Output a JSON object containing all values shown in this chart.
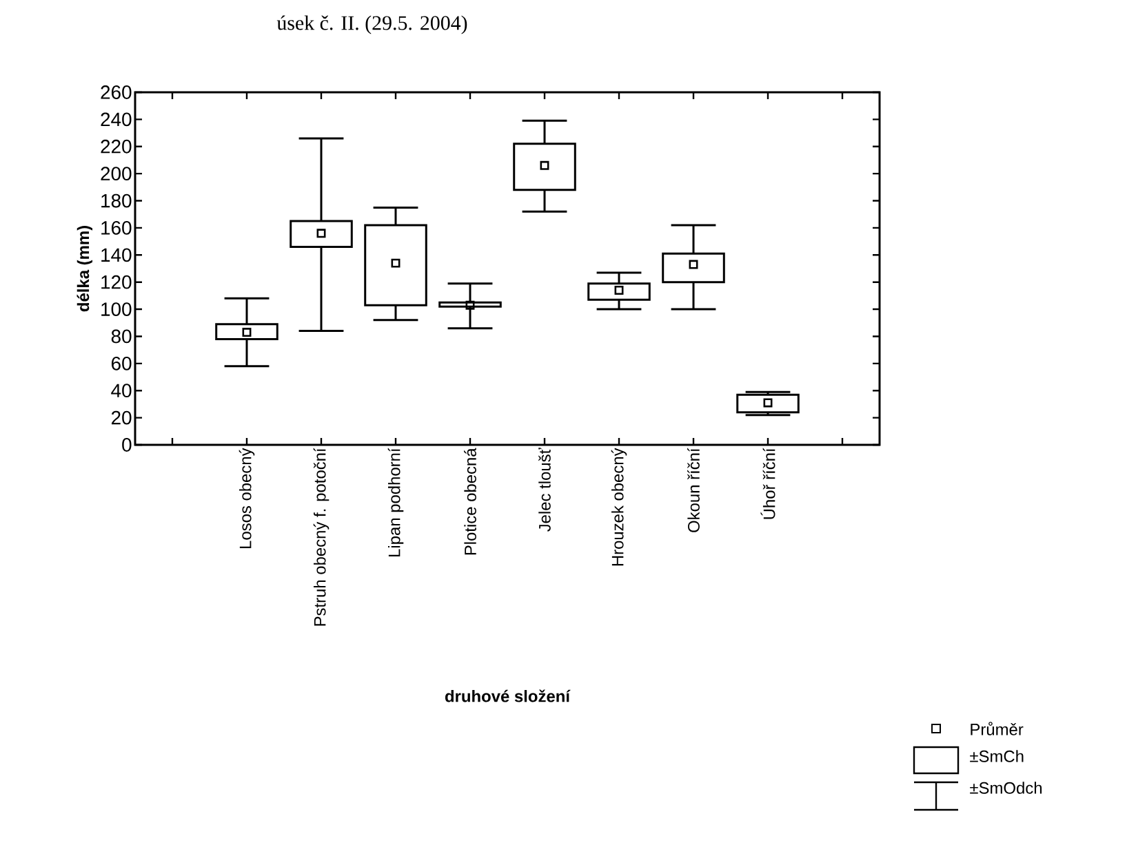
{
  "chart_data": {
    "type": "box",
    "title": "úsek č. II. (29.5. 2004)",
    "xlabel": "druhové složení",
    "ylabel": "délka (mm)",
    "categories": [
      null,
      "Losos obecný",
      "Pstruh obecný f. potoční",
      "Lipan podhorní",
      "Plotice obecná",
      "Jelec tloušť",
      "Hrouzek obecný",
      "Okoun říční",
      "Úhoř říční",
      null
    ],
    "boxes": [
      null,
      {
        "low": 58,
        "q1": 78,
        "q3": 89,
        "high": 108,
        "mean": 83
      },
      {
        "low": 84,
        "q1": 146,
        "q3": 165,
        "high": 226,
        "mean": 156
      },
      {
        "low": 92,
        "q1": 103,
        "q3": 162,
        "high": 175,
        "mean": 134
      },
      {
        "low": 86,
        "q1": 102,
        "q3": 105,
        "high": 119,
        "mean": 103
      },
      {
        "low": 172,
        "q1": 188,
        "q3": 222,
        "high": 239,
        "mean": 206
      },
      {
        "low": 100,
        "q1": 107,
        "q3": 119,
        "high": 127,
        "mean": 114
      },
      {
        "low": 100,
        "q1": 120,
        "q3": 141,
        "high": 162,
        "mean": 133
      },
      {
        "low": 22,
        "q1": 24,
        "q3": 37,
        "high": 39,
        "mean": 31
      },
      null
    ],
    "color": "#000000",
    "marker": "square",
    "ylim": [
      0,
      260
    ],
    "yticks": [
      0,
      20,
      40,
      60,
      80,
      100,
      120,
      140,
      160,
      180,
      200,
      220,
      240,
      260
    ],
    "annotations": [
      "Průměr",
      "±SmCh",
      "±SmOdch"
    ]
  }
}
